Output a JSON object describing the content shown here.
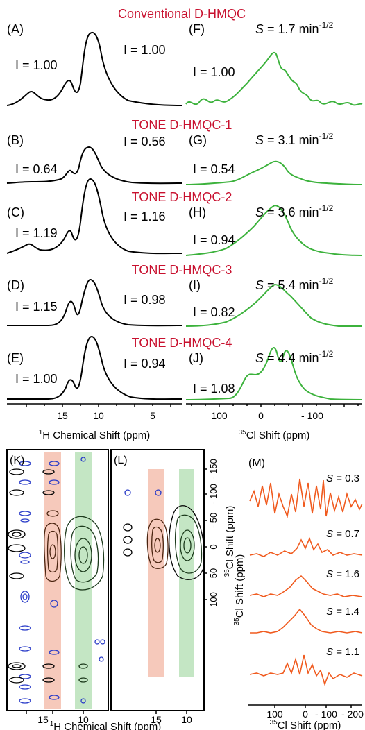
{
  "rows": [
    {
      "title": "Conventional D-HMQC",
      "left_label": "(A)",
      "right_label": "(F)",
      "I_left": "I = 1.00",
      "I_right": "I = 1.00",
      "I_f2": "I = 1.00",
      "S_value": "= 1.7 min",
      "S_exp": "-1/2"
    },
    {
      "title": "TONE D-HMQC-1",
      "left_label": "(B)",
      "right_label": "(G)",
      "I_left": "I = 0.64",
      "I_right": "I = 0.56",
      "I_f2": "I = 0.54",
      "S_value": "= 3.1 min",
      "S_exp": "-1/2"
    },
    {
      "title": "TONE D-HMQC-2",
      "left_label": "(C)",
      "right_label": "(H)",
      "I_left": "I = 1.19",
      "I_right": "I = 1.16",
      "I_f2": "I = 0.94",
      "S_value": "= 3.6 min",
      "S_exp": "-1/2"
    },
    {
      "title": "TONE D-HMQC-3",
      "left_label": "(D)",
      "right_label": "(I)",
      "I_left": "I = 1.15",
      "I_right": "I = 0.98",
      "I_f2": "I = 0.82",
      "S_value": "= 5.4 min",
      "S_exp": "-1/2"
    },
    {
      "title": "TONE D-HMQC-4",
      "left_label": "(E)",
      "right_label": "(J)",
      "I_left": "I = 1.00",
      "I_right": "I = 0.94",
      "I_f2": "I = 1.08",
      "S_value": "= 4.4 min",
      "S_exp": "-1/2"
    }
  ],
  "s_symbol": "S",
  "h_axis": {
    "ticks": [
      "15",
      "10",
      "5"
    ],
    "label_sup": "1",
    "label": "H Chemical Shift (ppm)"
  },
  "cl_axis": {
    "ticks": [
      "100",
      "0",
      "- 100"
    ],
    "label_sup": "35",
    "label": "Cl Shift (ppm)"
  },
  "panel_K": {
    "label": "(K)",
    "ticks": [
      "15",
      "10"
    ]
  },
  "panel_L": {
    "label": "(L)",
    "ticks": [
      "15",
      "10"
    ],
    "y_ticks": [
      "- 150",
      "- 100",
      "- 50",
      "0",
      "50",
      "100"
    ],
    "y_label_sup": "35",
    "y_label": "Cl Shift (ppm)"
  },
  "kl_axis_label_sup": "1",
  "kl_axis_label": "H Chemical Shift (ppm)",
  "panel_M": {
    "label": "(M)",
    "ticks": [
      "100",
      "0",
      "- 100",
      "- 200"
    ],
    "x_label_sup": "35",
    "x_label": "Cl Shift (ppm)",
    "s_labels": [
      "= 0.3",
      "= 0.7",
      "= 1.6",
      "= 1.4",
      "= 1.1"
    ]
  },
  "colors": {
    "red": "#c8102e",
    "green": "#3cb23c",
    "orange": "#f05a1e",
    "blue": "#2a3cc8",
    "pink_band": "#f6c9bb",
    "green_band": "#c4e6c4"
  },
  "icons": []
}
